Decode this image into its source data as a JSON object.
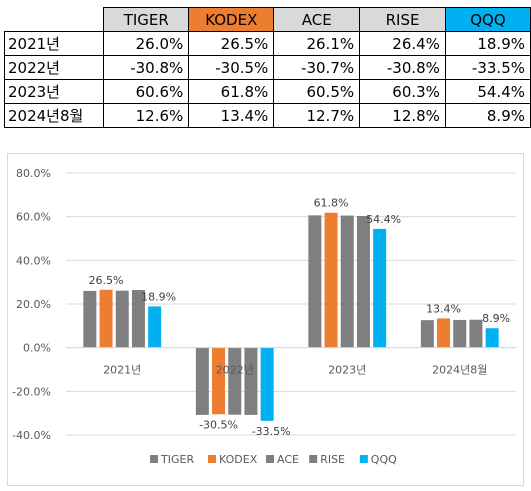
{
  "table": {
    "headers": [
      "",
      "TIGER",
      "KODEX",
      "ACE",
      "RISE",
      "QQQ"
    ],
    "header_colors": [
      "#ffffff",
      "#d9d9d9",
      "#ed7d31",
      "#d9d9d9",
      "#d9d9d9",
      "#00b0f0"
    ],
    "rows": [
      [
        "2021년",
        "26.0%",
        "26.5%",
        "26.1%",
        "26.4%",
        "18.9%"
      ],
      [
        "2022년",
        "-30.8%",
        "-30.5%",
        "-30.7%",
        "-30.8%",
        "-33.5%"
      ],
      [
        "2023년",
        "60.6%",
        "61.8%",
        "60.5%",
        "60.3%",
        "54.4%"
      ],
      [
        "2024년8월",
        "12.6%",
        "13.4%",
        "12.7%",
        "12.8%",
        "8.9%"
      ]
    ]
  },
  "chart_data": {
    "type": "bar",
    "categories": [
      "2021년",
      "2022년",
      "2023년",
      "2024년8월"
    ],
    "series": [
      {
        "name": "TIGER",
        "color": "#7f7f7f",
        "values": [
          26.0,
          -30.8,
          60.6,
          12.6
        ]
      },
      {
        "name": "KODEX",
        "color": "#ed7d31",
        "values": [
          26.5,
          -30.5,
          61.8,
          13.4
        ]
      },
      {
        "name": "ACE",
        "color": "#7f7f7f",
        "values": [
          26.1,
          -30.7,
          60.5,
          12.7
        ]
      },
      {
        "name": "RISE",
        "color": "#7f7f7f",
        "values": [
          26.4,
          -30.8,
          60.3,
          12.8
        ]
      },
      {
        "name": "QQQ",
        "color": "#00b0f0",
        "values": [
          18.9,
          -33.5,
          54.4,
          8.9
        ]
      }
    ],
    "labeled_series": [
      "KODEX",
      "QQQ"
    ],
    "y_ticks": [
      "80.0%",
      "60.0%",
      "40.0%",
      "20.0%",
      "0.0%",
      "-20.0%",
      "-40.0%"
    ],
    "ylim": [
      -40,
      80
    ],
    "grid": true,
    "legend_position": "bottom",
    "title": "",
    "xlabel": "",
    "ylabel": ""
  }
}
